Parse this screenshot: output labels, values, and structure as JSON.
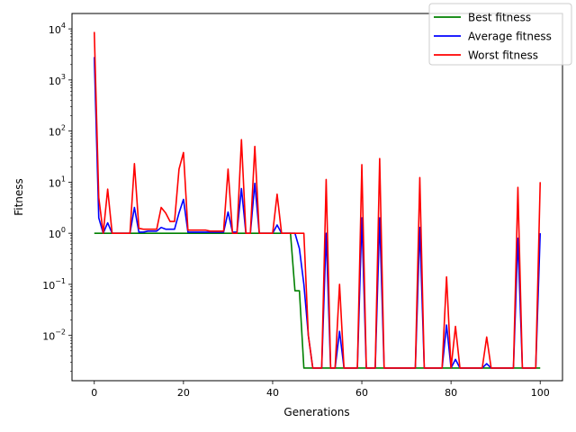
{
  "chart_data": {
    "type": "line",
    "title": "",
    "xlabel": "Generations",
    "ylabel": "Fitness",
    "yscale": "log",
    "xlim": [
      -5,
      105
    ],
    "ylim": [
      0.0013,
      20000
    ],
    "grid": false,
    "legend_position": "top-right",
    "x_ticks": [
      0,
      20,
      40,
      60,
      80,
      100
    ],
    "x_tick_labels": [
      "0",
      "20",
      "40",
      "60",
      "80",
      "100"
    ],
    "y_ticks": [
      0.01,
      0.1,
      1,
      10,
      100,
      1000,
      10000
    ],
    "y_tick_labels": [
      {
        "base": "10",
        "exp": "−2"
      },
      {
        "base": "10",
        "exp": "−1"
      },
      {
        "base": "10",
        "exp": "0"
      },
      {
        "base": "10",
        "exp": "1"
      },
      {
        "base": "10",
        "exp": "2"
      },
      {
        "base": "10",
        "exp": "3"
      },
      {
        "base": "10",
        "exp": "4"
      }
    ],
    "x": [
      0,
      1,
      2,
      3,
      4,
      5,
      6,
      7,
      8,
      9,
      10,
      11,
      12,
      13,
      14,
      15,
      16,
      17,
      18,
      19,
      20,
      21,
      22,
      23,
      24,
      25,
      26,
      27,
      28,
      29,
      30,
      31,
      32,
      33,
      34,
      35,
      36,
      37,
      38,
      39,
      40,
      41,
      42,
      43,
      44,
      45,
      46,
      47,
      48,
      49,
      50,
      51,
      52,
      53,
      54,
      55,
      56,
      57,
      58,
      59,
      60,
      61,
      62,
      63,
      64,
      65,
      66,
      67,
      68,
      69,
      70,
      71,
      72,
      73,
      74,
      75,
      76,
      77,
      78,
      79,
      80,
      81,
      82,
      83,
      84,
      85,
      86,
      87,
      88,
      89,
      90,
      91,
      92,
      93,
      94,
      95,
      96,
      97,
      98,
      99,
      100
    ],
    "series": [
      {
        "name": "Best fitness",
        "color": "#008000",
        "values": [
          1,
          1,
          1,
          1,
          1,
          1,
          1,
          1,
          1,
          1,
          1,
          1,
          1,
          1,
          1,
          1,
          1,
          1,
          1,
          1,
          1,
          1,
          1,
          1,
          1,
          1,
          1,
          1,
          1,
          1,
          1,
          1,
          1,
          1,
          1,
          1,
          1,
          1,
          1,
          1,
          1,
          1,
          1,
          1,
          1,
          0.075,
          0.075,
          0.0023,
          0.0023,
          0.0023,
          0.0023,
          0.0023,
          0.0023,
          0.0023,
          0.0023,
          0.0023,
          0.0023,
          0.0023,
          0.0023,
          0.0023,
          0.0023,
          0.0023,
          0.0023,
          0.0023,
          0.0023,
          0.0023,
          0.0023,
          0.0023,
          0.0023,
          0.0023,
          0.0023,
          0.0023,
          0.0023,
          0.0023,
          0.0023,
          0.0023,
          0.0023,
          0.0023,
          0.0023,
          0.0023,
          0.0023,
          0.0023,
          0.0023,
          0.0023,
          0.0023,
          0.0023,
          0.0023,
          0.0023,
          0.0023,
          0.0023,
          0.0023,
          0.0023,
          0.0023,
          0.0023,
          0.0023,
          0.0023,
          0.0023,
          0.0023,
          0.0023,
          0.0023,
          0.0023
        ]
      },
      {
        "name": "Average fitness",
        "color": "#0000ff",
        "values": [
          2800,
          2,
          1,
          1.6,
          1,
          1,
          1,
          1,
          1,
          3.2,
          1.05,
          1.05,
          1.1,
          1.1,
          1.1,
          1.3,
          1.2,
          1.2,
          1.2,
          2.5,
          4.6,
          1.05,
          1.05,
          1.05,
          1.05,
          1.05,
          1.05,
          1.05,
          1.05,
          1.05,
          2.6,
          1.05,
          1.05,
          7.5,
          1,
          1,
          9.5,
          1,
          1,
          1,
          1,
          1.45,
          1,
          1,
          1,
          1,
          0.5,
          0.1,
          0.01,
          0.0023,
          0.0023,
          0.0023,
          1,
          0.0023,
          0.0023,
          0.012,
          0.0023,
          0.0023,
          0.0023,
          0.0023,
          2,
          0.0023,
          0.0023,
          0.0023,
          2,
          0.0023,
          0.0023,
          0.0023,
          0.0023,
          0.0023,
          0.0023,
          0.0023,
          0.0023,
          1.3,
          0.0023,
          0.0023,
          0.0023,
          0.0023,
          0.0023,
          0.016,
          0.0023,
          0.0034,
          0.0023,
          0.0023,
          0.0023,
          0.0023,
          0.0023,
          0.0023,
          0.0028,
          0.0023,
          0.0023,
          0.0023,
          0.0023,
          0.0023,
          0.0023,
          0.8,
          0.0023,
          0.0023,
          0.0023,
          0.0023,
          1
        ]
      },
      {
        "name": "Worst fitness",
        "color": "#ff0000",
        "values": [
          8700,
          5,
          1,
          7.3,
          1,
          1,
          1,
          1,
          1,
          23,
          1.25,
          1.2,
          1.2,
          1.2,
          1.2,
          3.2,
          2.5,
          1.7,
          1.7,
          18,
          38,
          1.15,
          1.15,
          1.15,
          1.15,
          1.15,
          1.1,
          1.1,
          1.1,
          1.1,
          18,
          1,
          1,
          68,
          1,
          1,
          50,
          1,
          1,
          1,
          1,
          5.8,
          1,
          1,
          1,
          1,
          1,
          1,
          0.01,
          0.0023,
          0.0023,
          0.0023,
          11.3,
          0.0023,
          0.0023,
          0.1,
          0.0023,
          0.0023,
          0.0023,
          0.0023,
          22,
          0.0023,
          0.0023,
          0.0023,
          29,
          0.0023,
          0.0023,
          0.0023,
          0.0023,
          0.0023,
          0.0023,
          0.0023,
          0.0023,
          12.3,
          0.0023,
          0.0023,
          0.0023,
          0.0023,
          0.0023,
          0.14,
          0.0023,
          0.015,
          0.0023,
          0.0023,
          0.0023,
          0.0023,
          0.0023,
          0.0023,
          0.0093,
          0.0023,
          0.0023,
          0.0023,
          0.0023,
          0.0023,
          0.0023,
          7.9,
          0.0023,
          0.0023,
          0.0023,
          0.0023,
          10
        ]
      }
    ]
  }
}
